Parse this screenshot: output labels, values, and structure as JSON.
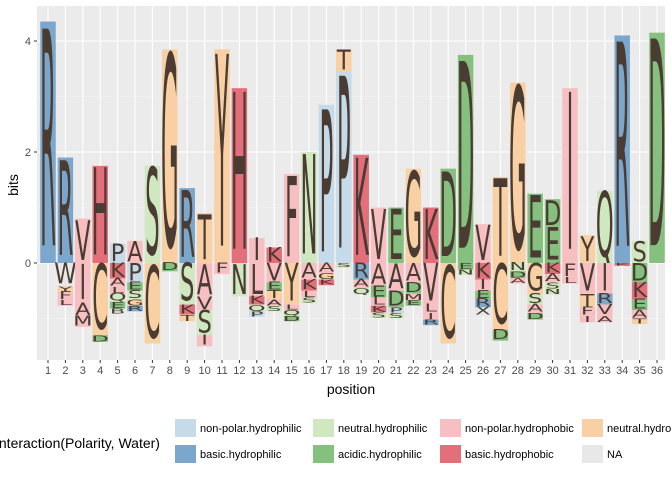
{
  "chart_data": {
    "type": "sequence-logo",
    "xlabel": "position",
    "ylabel": "bits",
    "ylim": [
      -1.5,
      4.3
    ],
    "yticks": [
      0,
      2,
      4
    ],
    "positions": [
      "1",
      "2",
      "3",
      "4",
      "5",
      "6",
      "7",
      "8",
      "9",
      "10",
      "11",
      "12",
      "13",
      "14",
      "15",
      "16",
      "17",
      "18",
      "19",
      "20",
      "21",
      "22",
      "23",
      "24",
      "25",
      "26",
      "27",
      "28",
      "29",
      "30",
      "31",
      "32",
      "33",
      "34",
      "35",
      "36"
    ],
    "legend_title": "Interaction(Polarity, Water)",
    "groups": [
      {
        "name": "non-polar.hydrophilic",
        "color": "#c6dbe9"
      },
      {
        "name": "basic.hydrophilic",
        "color": "#7ba7cc"
      },
      {
        "name": "neutral.hydrophilic",
        "color": "#cfe8bf"
      },
      {
        "name": "acidic.hydrophilic",
        "color": "#86c07e"
      },
      {
        "name": "non-polar.hydrophobic",
        "color": "#f7bfc2"
      },
      {
        "name": "basic.hydrophobic",
        "color": "#e46f7a"
      },
      {
        "name": "neutral.hydrophobic",
        "color": "#f8d0a3"
      },
      {
        "name": "NA",
        "color": "#e8e8e8"
      }
    ],
    "columns": [
      {
        "pos": 1,
        "up": [
          [
            "R",
            4.35,
            "basic.hydrophilic"
          ]
        ],
        "down": []
      },
      {
        "pos": 2,
        "up": [
          [
            "R",
            1.9,
            "basic.hydrophilic"
          ]
        ],
        "down": [
          [
            "W",
            0.42,
            "NA"
          ],
          [
            "Y",
            0.1,
            "neutral.hydrophobic"
          ],
          [
            "F",
            0.15,
            "non-polar.hydrophobic"
          ],
          [
            "L",
            0.1,
            "non-polar.hydrophobic"
          ]
        ]
      },
      {
        "pos": 3,
        "up": [
          [
            "V",
            0.8,
            "non-polar.hydrophobic"
          ]
        ],
        "down": [
          [
            "I",
            0.7,
            "non-polar.hydrophobic"
          ],
          [
            "A",
            0.25,
            "non-polar.hydrophobic"
          ],
          [
            "M",
            0.2,
            "non-polar.hydrophobic"
          ]
        ]
      },
      {
        "pos": 4,
        "up": [
          [
            "H",
            1.75,
            "basic.hydrophobic"
          ]
        ],
        "down": [
          [
            "C",
            1.3,
            "neutral.hydrophobic"
          ],
          [
            "D",
            0.12,
            "acidic.hydrophilic"
          ]
        ]
      },
      {
        "pos": 5,
        "up": [
          [
            "P",
            0.35,
            "non-polar.hydrophilic"
          ]
        ],
        "down": [
          [
            "K",
            0.28,
            "basic.hydrophobic"
          ],
          [
            "A",
            0.15,
            "non-polar.hydrophobic"
          ],
          [
            "L",
            0.12,
            "non-polar.hydrophobic"
          ],
          [
            "Q",
            0.15,
            "neutral.hydrophilic"
          ],
          [
            "E",
            0.12,
            "acidic.hydrophilic"
          ],
          [
            "B",
            0.1,
            "NA"
          ]
        ]
      },
      {
        "pos": 6,
        "up": [
          [
            "A",
            0.4,
            "non-polar.hydrophobic"
          ]
        ],
        "down": [
          [
            "P",
            0.35,
            "non-polar.hydrophilic"
          ],
          [
            "E",
            0.15,
            "acidic.hydrophilic"
          ],
          [
            "S",
            0.15,
            "neutral.hydrophilic"
          ],
          [
            "G",
            0.12,
            "neutral.hydrophobic"
          ],
          [
            "R",
            0.1,
            "basic.hydrophilic"
          ]
        ]
      },
      {
        "pos": 7,
        "up": [
          [
            "S",
            1.75,
            "neutral.hydrophilic"
          ]
        ],
        "down": [
          [
            "C",
            1.45,
            "neutral.hydrophobic"
          ]
        ]
      },
      {
        "pos": 8,
        "up": [
          [
            "G",
            3.85,
            "neutral.hydrophobic"
          ]
        ],
        "down": [
          [
            "D",
            0.15,
            "acidic.hydrophilic"
          ]
        ]
      },
      {
        "pos": 9,
        "up": [
          [
            "R",
            1.35,
            "basic.hydrophilic"
          ]
        ],
        "down": [
          [
            "S",
            0.75,
            "neutral.hydrophilic"
          ],
          [
            "K",
            0.18,
            "basic.hydrophobic"
          ],
          [
            "T",
            0.12,
            "neutral.hydrophobic"
          ]
        ]
      },
      {
        "pos": 10,
        "up": [
          [
            "T",
            0.9,
            "neutral.hydrophobic"
          ]
        ],
        "down": [
          [
            "A",
            0.6,
            "non-polar.hydrophobic"
          ],
          [
            "V",
            0.25,
            "non-polar.hydrophobic"
          ],
          [
            "S",
            0.45,
            "neutral.hydrophilic"
          ],
          [
            "I",
            0.2,
            "non-polar.hydrophobic"
          ]
        ]
      },
      {
        "pos": 11,
        "up": [
          [
            "Y",
            3.85,
            "neutral.hydrophobic"
          ]
        ],
        "down": [
          [
            "F",
            0.2,
            "non-polar.hydrophobic"
          ]
        ]
      },
      {
        "pos": 12,
        "up": [
          [
            "H",
            3.15,
            "basic.hydrophobic"
          ]
        ],
        "down": [
          [
            "N",
            0.6,
            "neutral.hydrophilic"
          ]
        ]
      },
      {
        "pos": 13,
        "up": [
          [
            "I",
            0.45,
            "non-polar.hydrophobic"
          ]
        ],
        "down": [
          [
            "L",
            0.6,
            "non-polar.hydrophobic"
          ],
          [
            "K",
            0.15,
            "basic.hydrophobic"
          ],
          [
            "Q",
            0.12,
            "neutral.hydrophilic"
          ],
          [
            "P",
            0.1,
            "non-polar.hydrophilic"
          ]
        ]
      },
      {
        "pos": 14,
        "up": [
          [
            "K",
            0.28,
            "basic.hydrophobic"
          ]
        ],
        "down": [
          [
            "V",
            0.35,
            "non-polar.hydrophobic"
          ],
          [
            "E",
            0.15,
            "acidic.hydrophilic"
          ],
          [
            "T",
            0.15,
            "neutral.hydrophobic"
          ],
          [
            "A",
            0.12,
            "non-polar.hydrophobic"
          ],
          [
            "S",
            0.1,
            "neutral.hydrophilic"
          ]
        ]
      },
      {
        "pos": 15,
        "up": [
          [
            "F",
            1.6,
            "non-polar.hydrophobic"
          ]
        ],
        "down": [
          [
            "Y",
            0.75,
            "neutral.hydrophobic"
          ],
          [
            "L",
            0.1,
            "non-polar.hydrophobic"
          ],
          [
            "Q",
            0.1,
            "neutral.hydrophilic"
          ],
          [
            "D",
            0.1,
            "acidic.hydrophilic"
          ]
        ]
      },
      {
        "pos": 16,
        "up": [
          [
            "N",
            2.0,
            "neutral.hydrophilic"
          ]
        ],
        "down": [
          [
            "A",
            0.3,
            "non-polar.hydrophobic"
          ],
          [
            "K",
            0.2,
            "basic.hydrophobic"
          ],
          [
            "L",
            0.12,
            "non-polar.hydrophobic"
          ],
          [
            "S",
            0.1,
            "neutral.hydrophilic"
          ]
        ]
      },
      {
        "pos": 17,
        "up": [
          [
            "P",
            2.85,
            "non-polar.hydrophilic"
          ]
        ],
        "down": [
          [
            "A",
            0.18,
            "non-polar.hydrophobic"
          ],
          [
            "G",
            0.12,
            "neutral.hydrophobic"
          ],
          [
            "K",
            0.1,
            "basic.hydrophobic"
          ]
        ]
      },
      {
        "pos": 18,
        "up": [
          [
            "P",
            3.45,
            "non-polar.hydrophilic"
          ],
          [
            "T",
            0.4,
            "neutral.hydrophobic"
          ]
        ],
        "down": [
          [
            "S",
            0.08,
            "neutral.hydrophilic"
          ]
        ]
      },
      {
        "pos": 19,
        "up": [
          [
            "K",
            1.95,
            "basic.hydrophobic"
          ]
        ],
        "down": [
          [
            "R",
            0.3,
            "basic.hydrophilic"
          ],
          [
            "A",
            0.15,
            "non-polar.hydrophobic"
          ],
          [
            "Q",
            0.12,
            "neutral.hydrophilic"
          ]
        ]
      },
      {
        "pos": 20,
        "up": [
          [
            "V",
            1.0,
            "non-polar.hydrophobic"
          ]
        ],
        "down": [
          [
            "A",
            0.4,
            "non-polar.hydrophobic"
          ],
          [
            "E",
            0.22,
            "acidic.hydrophilic"
          ],
          [
            "L",
            0.15,
            "non-polar.hydrophobic"
          ],
          [
            "K",
            0.12,
            "basic.hydrophobic"
          ],
          [
            "S",
            0.1,
            "neutral.hydrophilic"
          ]
        ]
      },
      {
        "pos": 21,
        "up": [
          [
            "E",
            1.0,
            "acidic.hydrophilic"
          ]
        ],
        "down": [
          [
            "A",
            0.5,
            "non-polar.hydrophobic"
          ],
          [
            "D",
            0.3,
            "acidic.hydrophilic"
          ],
          [
            "P",
            0.1,
            "non-polar.hydrophilic"
          ],
          [
            "S",
            0.1,
            "neutral.hydrophilic"
          ]
        ]
      },
      {
        "pos": 22,
        "up": [
          [
            "G",
            1.7,
            "neutral.hydrophobic"
          ]
        ],
        "down": [
          [
            "A",
            0.35,
            "non-polar.hydrophobic"
          ],
          [
            "D",
            0.2,
            "acidic.hydrophilic"
          ],
          [
            "M",
            0.12,
            "non-polar.hydrophobic"
          ],
          [
            "E",
            0.1,
            "acidic.hydrophilic"
          ]
        ]
      },
      {
        "pos": 23,
        "up": [
          [
            "K",
            1.0,
            "basic.hydrophobic"
          ]
        ],
        "down": [
          [
            "V",
            0.75,
            "non-polar.hydrophobic"
          ],
          [
            "L",
            0.15,
            "non-polar.hydrophobic"
          ],
          [
            "I",
            0.12,
            "non-polar.hydrophobic"
          ],
          [
            "R",
            0.1,
            "basic.hydrophilic"
          ]
        ]
      },
      {
        "pos": 24,
        "up": [
          [
            "D",
            1.7,
            "acidic.hydrophilic"
          ]
        ],
        "down": [
          [
            "C",
            1.45,
            "neutral.hydrophobic"
          ]
        ]
      },
      {
        "pos": 25,
        "up": [
          [
            "D",
            3.75,
            "acidic.hydrophilic"
          ]
        ],
        "down": [
          [
            "E",
            0.12,
            "acidic.hydrophilic"
          ],
          [
            "N",
            0.1,
            "neutral.hydrophilic"
          ]
        ]
      },
      {
        "pos": 26,
        "up": [
          [
            "V",
            0.7,
            "non-polar.hydrophobic"
          ]
        ],
        "down": [
          [
            "K",
            0.3,
            "basic.hydrophobic"
          ],
          [
            "I",
            0.2,
            "non-polar.hydrophobic"
          ],
          [
            "E",
            0.15,
            "acidic.hydrophilic"
          ],
          [
            "R",
            0.15,
            "basic.hydrophilic"
          ],
          [
            "X",
            0.15,
            "NA"
          ]
        ]
      },
      {
        "pos": 27,
        "up": [
          [
            "T",
            1.55,
            "neutral.hydrophobic"
          ]
        ],
        "down": [
          [
            "C",
            1.2,
            "neutral.hydrophobic"
          ],
          [
            "D",
            0.2,
            "acidic.hydrophilic"
          ]
        ]
      },
      {
        "pos": 28,
        "up": [
          [
            "G",
            3.25,
            "neutral.hydrophobic"
          ]
        ],
        "down": [
          [
            "N",
            0.15,
            "neutral.hydrophilic"
          ],
          [
            "D",
            0.12,
            "acidic.hydrophilic"
          ],
          [
            "A",
            0.1,
            "non-polar.hydrophobic"
          ]
        ]
      },
      {
        "pos": 29,
        "up": [
          [
            "E",
            1.25,
            "acidic.hydrophilic"
          ]
        ],
        "down": [
          [
            "G",
            0.55,
            "neutral.hydrophobic"
          ],
          [
            "S",
            0.2,
            "neutral.hydrophilic"
          ],
          [
            "A",
            0.15,
            "non-polar.hydrophobic"
          ],
          [
            "D",
            0.12,
            "acidic.hydrophilic"
          ]
        ]
      },
      {
        "pos": 30,
        "up": [
          [
            "E",
            0.65,
            "acidic.hydrophilic"
          ],
          [
            "D",
            0.5,
            "acidic.hydrophilic"
          ]
        ],
        "down": [
          [
            "K",
            0.2,
            "basic.hydrophobic"
          ],
          [
            "A",
            0.15,
            "non-polar.hydrophobic"
          ],
          [
            "S",
            0.12,
            "neutral.hydrophilic"
          ],
          [
            "N",
            0.1,
            "neutral.hydrophilic"
          ]
        ]
      },
      {
        "pos": 31,
        "up": [
          [
            "I",
            3.15,
            "non-polar.hydrophobic"
          ]
        ],
        "down": [
          [
            "F",
            0.25,
            "non-polar.hydrophobic"
          ],
          [
            "L",
            0.12,
            "non-polar.hydrophobic"
          ]
        ]
      },
      {
        "pos": 32,
        "up": [
          [
            "Y",
            0.5,
            "neutral.hydrophobic"
          ]
        ],
        "down": [
          [
            "V",
            0.55,
            "non-polar.hydrophobic"
          ],
          [
            "T",
            0.25,
            "neutral.hydrophobic"
          ],
          [
            "F",
            0.15,
            "non-polar.hydrophobic"
          ],
          [
            "I",
            0.12,
            "non-polar.hydrophobic"
          ]
        ]
      },
      {
        "pos": 33,
        "up": [
          [
            "Q",
            1.3,
            "neutral.hydrophilic"
          ]
        ],
        "down": [
          [
            "I",
            0.55,
            "non-polar.hydrophobic"
          ],
          [
            "R",
            0.2,
            "basic.hydrophilic"
          ],
          [
            "V",
            0.2,
            "non-polar.hydrophobic"
          ],
          [
            "A",
            0.12,
            "non-polar.hydrophobic"
          ]
        ]
      },
      {
        "pos": 34,
        "up": [
          [
            "R",
            4.1,
            "basic.hydrophilic"
          ]
        ],
        "down": [
          [
            "K",
            0.05,
            "basic.hydrophobic"
          ]
        ]
      },
      {
        "pos": 35,
        "up": [
          [
            "S",
            0.4,
            "neutral.hydrophilic"
          ]
        ],
        "down": [
          [
            "D",
            0.35,
            "acidic.hydrophilic"
          ],
          [
            "K",
            0.3,
            "basic.hydrophobic"
          ],
          [
            "E",
            0.2,
            "acidic.hydrophilic"
          ],
          [
            "A",
            0.15,
            "non-polar.hydrophobic"
          ],
          [
            "T",
            0.1,
            "neutral.hydrophobic"
          ]
        ]
      },
      {
        "pos": 36,
        "up": [
          [
            "D",
            4.15,
            "acidic.hydrophilic"
          ]
        ],
        "down": []
      }
    ]
  }
}
